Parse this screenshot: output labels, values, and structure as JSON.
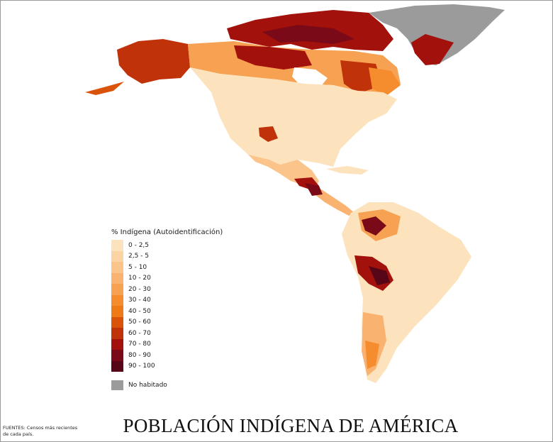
{
  "title": "POBLACIÓN INDÍGENA DE AMÉRICA",
  "sources": {
    "line1": "FUENTES: Censos más recientes",
    "line2": "de cada país."
  },
  "legend": {
    "title": "% Indígena (Autoidentificación)",
    "classes": [
      {
        "label": "0 - 2,5",
        "color": "#fde3bd"
      },
      {
        "label": "2,5 - 5",
        "color": "#fcd3a3"
      },
      {
        "label": "5 - 10",
        "color": "#fbc48b"
      },
      {
        "label": "10 - 20",
        "color": "#f9b26f"
      },
      {
        "label": "20 - 30",
        "color": "#f7a152"
      },
      {
        "label": "30 - 40",
        "color": "#f58d2f"
      },
      {
        "label": "40 - 50",
        "color": "#ef7a16"
      },
      {
        "label": "50 - 60",
        "color": "#d9530b"
      },
      {
        "label": "60 - 70",
        "color": "#c0330a"
      },
      {
        "label": "70 - 80",
        "color": "#a3110c"
      },
      {
        "label": "80 - 90",
        "color": "#7a0a17"
      },
      {
        "label": "90 - 100",
        "color": "#560617"
      }
    ],
    "no_data": {
      "label": "No habitado",
      "color": "#9b9b9b"
    }
  }
}
